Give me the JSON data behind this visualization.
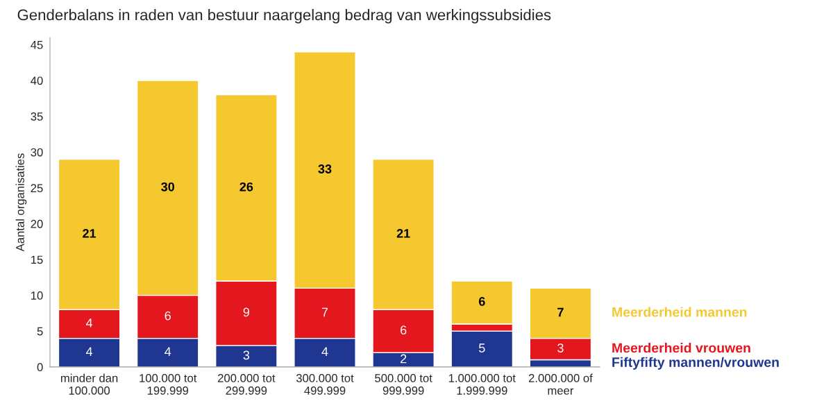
{
  "chart_data": {
    "type": "bar",
    "stacked": true,
    "title": "Genderbalans in raden van bestuur naargelang bedrag van werkingssubsidies",
    "ylabel": "Aantal organisaties",
    "categories": [
      "minder dan\n100.000",
      "100.000 tot\n199.999",
      "200.000 tot\n299.999",
      "300.000 tot\n499.999",
      "500.000 tot\n999.999",
      "1.000.000 tot\n1.999.999",
      "2.000.000 of\nmeer"
    ],
    "series": [
      {
        "name": "Fiftyfifty mannen/vrouwen",
        "color": "#1f3791",
        "values": [
          4,
          4,
          3,
          4,
          2,
          5,
          1
        ],
        "value_labels": [
          "4",
          "4",
          "3",
          "4",
          "2",
          "5",
          null
        ]
      },
      {
        "name": "Meerderheid vrouwen",
        "color": "#e4171f",
        "values": [
          4,
          6,
          9,
          7,
          6,
          1,
          3
        ],
        "value_labels": [
          "4",
          "6",
          "9",
          "7",
          "6",
          null,
          "3"
        ]
      },
      {
        "name": "Meerderheid mannen",
        "color": "#f5c830",
        "values": [
          21,
          30,
          26,
          33,
          21,
          6,
          7
        ],
        "value_labels": [
          "21",
          "30",
          "26",
          "33",
          "21",
          "6",
          "7"
        ]
      }
    ],
    "ylim": [
      0,
      46
    ],
    "yticks": [
      0,
      5,
      10,
      15,
      20,
      25,
      30,
      35,
      40,
      45
    ],
    "grid": false,
    "legend": "right"
  }
}
